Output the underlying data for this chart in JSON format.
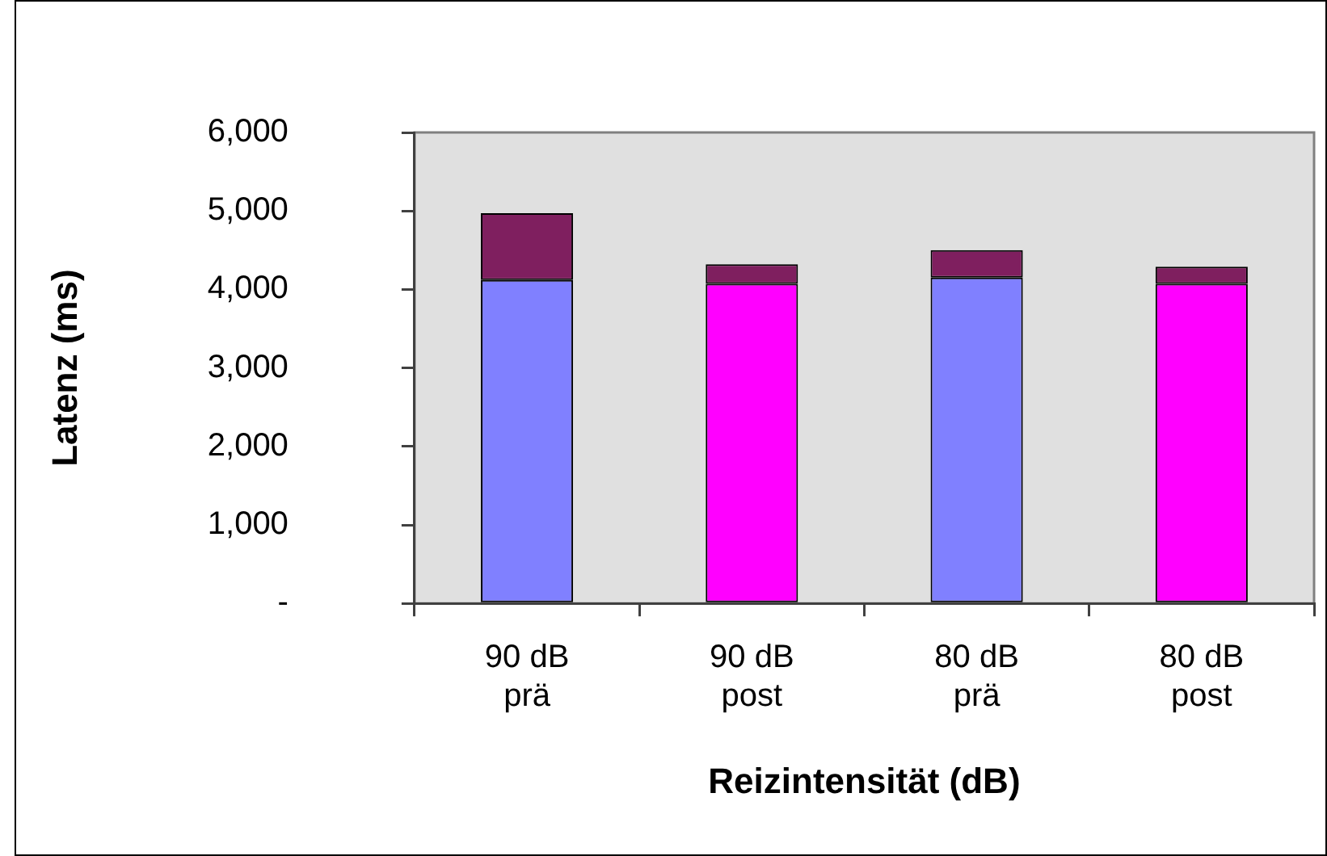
{
  "chart_data": {
    "type": "bar",
    "stacked": true,
    "xlabel": "Reizintensität (dB)",
    "ylabel": "Latenz (ms)",
    "categories": [
      "90 dB prä",
      "90 dB post",
      "80 dB prä",
      "80 dB post"
    ],
    "series": [
      {
        "colors": [
          "#8080ff",
          "#ff00ff",
          "#8080ff",
          "#ff00ff"
        ],
        "values": [
          4120,
          4070,
          4150,
          4070
        ]
      },
      {
        "color": "#7f1f5f",
        "values": [
          850,
          250,
          350,
          220
        ]
      }
    ],
    "ylim": [
      0,
      6000
    ],
    "yticks": [
      {
        "value": 0,
        "label": "-"
      },
      {
        "value": 1000,
        "label": "1,000"
      },
      {
        "value": 2000,
        "label": "2,000"
      },
      {
        "value": 3000,
        "label": "3,000"
      },
      {
        "value": 4000,
        "label": "4,000"
      },
      {
        "value": 5000,
        "label": "5,000"
      },
      {
        "value": 6000,
        "label": "6,000"
      }
    ]
  }
}
